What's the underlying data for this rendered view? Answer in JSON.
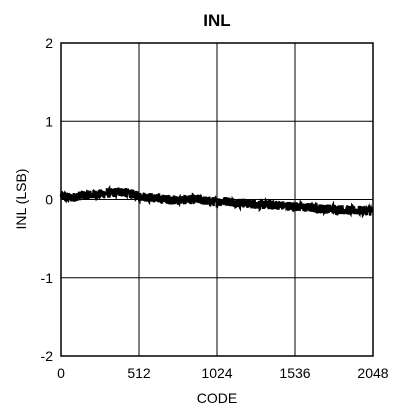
{
  "chart_data": {
    "type": "line",
    "title": "INL",
    "xlabel": "CODE",
    "ylabel": "INL (LSB)",
    "xlim": [
      0,
      2048
    ],
    "ylim": [
      -2,
      2
    ],
    "x_ticks": [
      0,
      512,
      1024,
      1536,
      2048
    ],
    "x_tick_labels": [
      "0",
      "512",
      "1024",
      "1536",
      "2048"
    ],
    "y_ticks": [
      2,
      1,
      0,
      -1,
      -2
    ],
    "y_tick_labels": [
      "2",
      "1",
      "0",
      "-1",
      "-2"
    ],
    "grid": true,
    "line_color": "#000000",
    "series": [
      {
        "x": [
          0,
          64,
          128,
          192,
          256,
          320,
          384,
          448,
          512,
          576,
          640,
          704,
          768,
          832,
          896,
          960,
          1024,
          1088,
          1152,
          1216,
          1280,
          1344,
          1408,
          1472,
          1536,
          1600,
          1664,
          1728,
          1792,
          1856,
          1920,
          1984,
          2048
        ],
        "y": [
          0.05,
          0.02,
          0.05,
          0.06,
          0.07,
          0.08,
          0.1,
          0.08,
          0.04,
          0.03,
          0.01,
          0.0,
          -0.01,
          0.0,
          0.0,
          -0.02,
          -0.03,
          -0.02,
          -0.04,
          -0.05,
          -0.06,
          -0.07,
          -0.07,
          -0.08,
          -0.09,
          -0.1,
          -0.11,
          -0.12,
          -0.12,
          -0.13,
          -0.14,
          -0.14,
          -0.15
        ],
        "noise_amplitude": 0.06
      }
    ]
  }
}
